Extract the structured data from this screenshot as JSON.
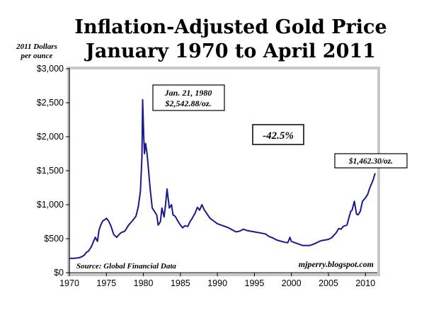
{
  "chart_data": {
    "type": "line",
    "title": "Inflation-Adjusted Gold Price",
    "subtitle": "January 1970 to April 2011",
    "ylabel_line1": "2011 Dollars",
    "ylabel_line2": "per ounce",
    "xlabel": "",
    "xlim": [
      1970,
      2011.6
    ],
    "ylim": [
      0,
      3000
    ],
    "grid": false,
    "x_ticks": [
      1970,
      1975,
      1980,
      1985,
      1990,
      1995,
      2000,
      2005,
      2010
    ],
    "x_tick_labels": [
      "1970",
      "1975",
      "1980",
      "1985",
      "1990",
      "1995",
      "2000",
      "2005",
      "2010"
    ],
    "y_ticks": [
      0,
      500,
      1000,
      1500,
      2000,
      2500,
      3000
    ],
    "y_tick_labels": [
      "$0",
      "$500",
      "$1,000",
      "$1,500",
      "$2,000",
      "$2,500",
      "$3,000"
    ],
    "series_color": "#1a1a8c",
    "series": [
      {
        "x": [
          1970.0,
          1970.5,
          1971.0,
          1971.5,
          1972.0,
          1972.3,
          1972.6,
          1973.0,
          1973.3,
          1973.5,
          1973.8,
          1974.0,
          1974.2,
          1974.5,
          1974.8,
          1975.0,
          1975.3,
          1975.6,
          1976.0,
          1976.4,
          1976.7,
          1977.0,
          1977.5,
          1978.0,
          1978.5,
          1979.0,
          1979.3,
          1979.6,
          1979.8,
          1979.9,
          1980.05,
          1980.15,
          1980.3,
          1980.5,
          1980.7,
          1980.9,
          1981.0,
          1981.2,
          1981.5,
          1981.8,
          1982.0,
          1982.3,
          1982.5,
          1982.8,
          1983.0,
          1983.2,
          1983.5,
          1983.8,
          1984.0,
          1984.3,
          1984.6,
          1985.0,
          1985.3,
          1985.6,
          1986.0,
          1986.3,
          1986.6,
          1987.0,
          1987.3,
          1987.6,
          1987.9,
          1988.2,
          1988.5,
          1989.0,
          1989.5,
          1990.0,
          1990.5,
          1991.0,
          1991.5,
          1992.0,
          1992.5,
          1993.0,
          1993.5,
          1994.0,
          1995.0,
          1996.0,
          1996.5,
          1997.0,
          1997.5,
          1998.0,
          1999.0,
          1999.5,
          1999.8,
          2000.0,
          2000.5,
          2001.0,
          2001.5,
          2002.0,
          2002.5,
          2003.0,
          2004.0,
          2005.0,
          2005.5,
          2006.0,
          2006.4,
          2006.7,
          2007.0,
          2007.5,
          2008.0,
          2008.2,
          2008.5,
          2008.8,
          2009.0,
          2009.3,
          2009.6,
          2010.0,
          2010.3,
          2010.6,
          2011.0,
          2011.3
        ],
        "y": [
          210,
          210,
          215,
          225,
          255,
          300,
          320,
          390,
          470,
          520,
          460,
          620,
          690,
          760,
          780,
          800,
          760,
          690,
          560,
          520,
          560,
          590,
          610,
          700,
          760,
          830,
          960,
          1200,
          1700,
          2543,
          2000,
          1750,
          1900,
          1750,
          1500,
          1250,
          1150,
          950,
          900,
          850,
          700,
          750,
          950,
          820,
          1000,
          1230,
          950,
          1000,
          850,
          830,
          770,
          700,
          660,
          690,
          680,
          750,
          800,
          880,
          960,
          920,
          1000,
          930,
          880,
          800,
          760,
          720,
          700,
          680,
          660,
          630,
          600,
          610,
          640,
          620,
          600,
          580,
          570,
          530,
          510,
          480,
          450,
          440,
          520,
          460,
          440,
          420,
          400,
          400,
          400,
          420,
          470,
          490,
          520,
          580,
          650,
          640,
          680,
          700,
          900,
          920,
          1050,
          860,
          850,
          900,
          1050,
          1100,
          1150,
          1250,
          1350,
          1462
        ]
      }
    ],
    "annotations": {
      "peak_line1": "Jan. 21, 1980",
      "peak_line2": "$2,542.88/oz.",
      "change": "-42.5%",
      "latest": "$1,462.30/oz.",
      "source": "Source: Global Financial Data",
      "credit": "mjperry.blogspot.com"
    }
  }
}
